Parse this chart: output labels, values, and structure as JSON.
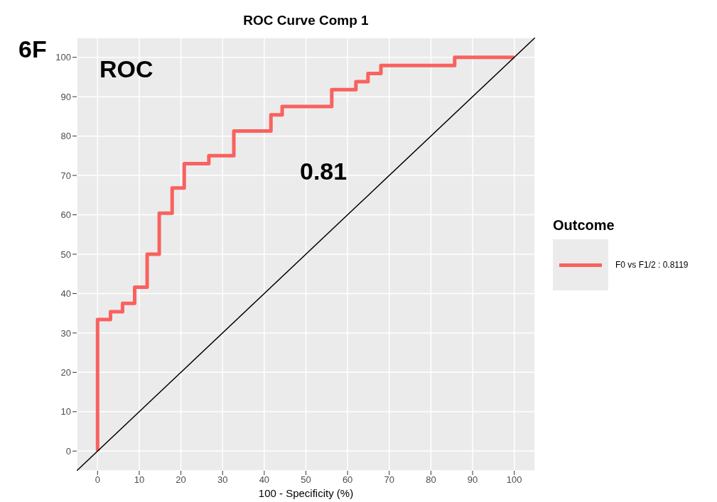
{
  "chart_data": {
    "type": "line",
    "title": "ROC Curve Comp 1",
    "xlabel": "100 - Specificity (%)",
    "legend_title": "Outcome",
    "annotations": [
      "6F",
      "ROC",
      "0.81"
    ],
    "xlim": [
      -5,
      105
    ],
    "ylim": [
      -5,
      105
    ],
    "xticks": [
      0,
      10,
      20,
      30,
      40,
      50,
      60,
      70,
      80,
      90,
      100
    ],
    "yticks": [
      0,
      10,
      20,
      30,
      40,
      50,
      60,
      70,
      80,
      90,
      100
    ],
    "grid": true,
    "legend": "right",
    "marker": "none",
    "line_style": "solid",
    "series": [
      {
        "name": "F0 vs F1/2 : 0.8119",
        "type": "step",
        "color": "#f8625f",
        "x": [
          0,
          0,
          3.1,
          6.0,
          8.9,
          11.9,
          14.8,
          17.9,
          20.8,
          26.7,
          32.7,
          41.6,
          44.3,
          56.2,
          62.0,
          64.9,
          68.0,
          85.7,
          100
        ],
        "values": [
          0,
          33.4,
          35.4,
          37.5,
          41.6,
          50,
          60.4,
          66.8,
          73,
          75,
          81.3,
          85.4,
          87.5,
          91.8,
          93.8,
          95.9,
          97.9,
          100,
          100
        ]
      },
      {
        "type": "line",
        "color": "#000000",
        "x": [
          -5,
          105
        ],
        "values": [
          -5,
          105
        ]
      }
    ]
  }
}
